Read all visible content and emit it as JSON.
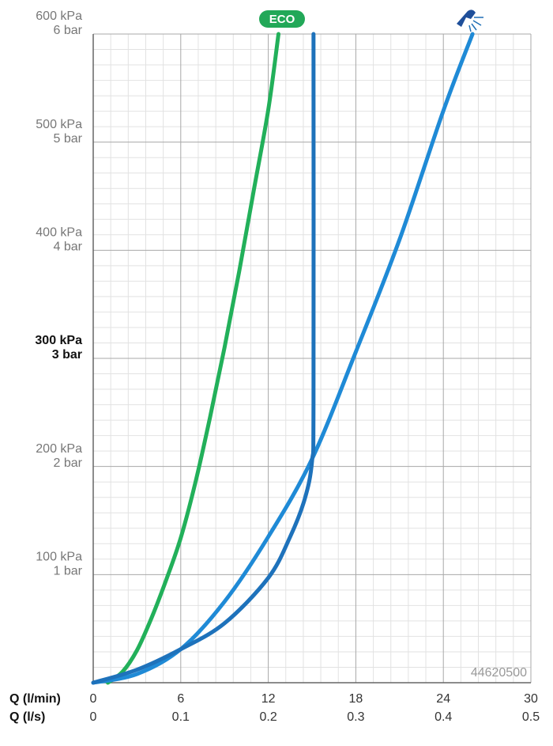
{
  "chart_data": {
    "type": "line",
    "x_label": "Q (l/min)",
    "x2_label": "Q (l/s)",
    "xlim": [
      0,
      30
    ],
    "xticks": [
      0,
      6,
      12,
      18,
      24,
      30
    ],
    "x2lim": [
      0,
      0.5
    ],
    "x2ticks": [
      0,
      0.1,
      0.2,
      0.3,
      0.4,
      0.5
    ],
    "ylim": [
      0,
      600
    ],
    "yticks": [
      {
        "value": 100,
        "label": "100 kPa",
        "sublabel": "1 bar"
      },
      {
        "value": 200,
        "label": "200 kPa",
        "sublabel": "2 bar"
      },
      {
        "value": 300,
        "label": "300 kPa",
        "sublabel": "3 bar",
        "bold": true
      },
      {
        "value": 400,
        "label": "400 kPa",
        "sublabel": "4 bar"
      },
      {
        "value": 500,
        "label": "500 kPa",
        "sublabel": "5 bar"
      },
      {
        "value": 600,
        "label": "600 kPa",
        "sublabel": "6 bar"
      }
    ],
    "grid": true,
    "minor_x_divisions": 5,
    "minor_y_divisions": 7,
    "annotation": "44620500",
    "badge": "ECO",
    "series": [
      {
        "color": "#22b05a",
        "x": [
          1,
          2,
          3,
          4,
          5,
          6,
          7,
          8,
          9,
          10,
          11,
          12,
          12.7
        ],
        "values": [
          0,
          10,
          30,
          60,
          95,
          134,
          185,
          245,
          310,
          380,
          455,
          530,
          600
        ]
      },
      {
        "color": "#1f8ad6",
        "x": [
          0,
          3,
          6,
          9,
          12,
          15,
          18,
          21,
          24,
          26
        ],
        "values": [
          0,
          8,
          31,
          75,
          135,
          207,
          306,
          410,
          529,
          600
        ]
      },
      {
        "color": "#1e72bb",
        "x": [
          0,
          3,
          6,
          9,
          12,
          13.5,
          14.5,
          15,
          15.1,
          15.1
        ],
        "values": [
          0,
          12,
          31,
          55,
          97,
          135,
          170,
          205,
          260,
          600
        ]
      }
    ]
  }
}
